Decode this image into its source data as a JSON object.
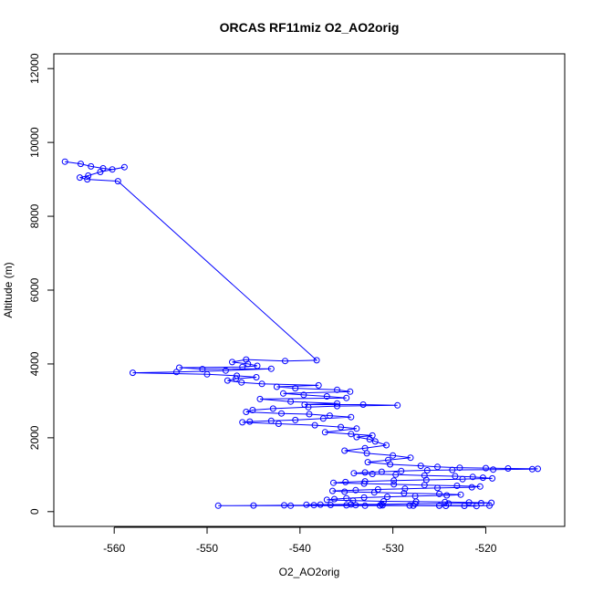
{
  "chart_data": {
    "type": "line",
    "title": "ORCAS RF11miz O2_AO2orig",
    "xlabel": "O2_AO2orig",
    "ylabel": "Altitude (m)",
    "xlim": [
      -566.5,
      -511.5
    ],
    "ylim": [
      -400,
      12400
    ],
    "x_ticks": [
      -560,
      -550,
      -540,
      -530,
      -520
    ],
    "x_tick_labels": [
      "-560",
      "-550",
      "-540",
      "-530",
      "-520"
    ],
    "y_ticks": [
      0,
      2000,
      4000,
      6000,
      8000,
      10000,
      12000
    ],
    "y_tick_labels": [
      "0",
      "2000",
      "4000",
      "6000",
      "8000",
      "10000",
      "12000"
    ],
    "grid": false,
    "series": [
      {
        "name": "O2_AO2orig",
        "color": "#0000ff",
        "marker": "open-circle",
        "x": [
          -565.3,
          -563.6,
          -562.5,
          -561.2,
          -560.2,
          -558.9,
          -561.5,
          -562.8,
          -563.7,
          -562.9,
          -559.6,
          -538.2,
          -541.6,
          -545.8,
          -547.3,
          -545.6,
          -544.6,
          -546.2,
          -553.0,
          -550.5,
          -543.1,
          -548.0,
          -553.3,
          -558.0,
          -550.0,
          -546.8,
          -544.7,
          -546.9,
          -547.8,
          -546.3,
          -544.1,
          -538.0,
          -542.5,
          -540.5,
          -536.0,
          -534.6,
          -541.8,
          -539.6,
          -537.1,
          -535.0,
          -544.3,
          -541.0,
          -536.0,
          -539.5,
          -533.2,
          -529.5,
          -536.0,
          -539.1,
          -542.9,
          -545.1,
          -545.8,
          -542.0,
          -539.0,
          -536.8,
          -534.5,
          -537.5,
          -540.5,
          -543.1,
          -545.4,
          -546.2,
          -542.3,
          -538.4,
          -535.6,
          -533.9,
          -537.3,
          -534.5,
          -532.2,
          -533.9,
          -532.5,
          -531.9,
          -530.7,
          -533.0,
          -535.2,
          -532.8,
          -530.0,
          -528.1,
          -530.5,
          -532.7,
          -530.3,
          -527.0,
          -525.2,
          -522.8,
          -520.0,
          -517.6,
          -514.4,
          -515.0,
          -519.2,
          -523.6,
          -526.3,
          -529.1,
          -531.2,
          -533.0,
          -534.2,
          -532.2,
          -529.7,
          -526.6,
          -523.3,
          -521.4,
          -520.3,
          -519.3,
          -522.5,
          -526.4,
          -529.9,
          -533.0,
          -535.1,
          -536.4,
          -533.1,
          -529.9,
          -526.6,
          -523.1,
          -520.6,
          -521.5,
          -525.2,
          -528.7,
          -531.6,
          -534.0,
          -536.5,
          -535.2,
          -532.0,
          -528.8,
          -525.0,
          -522.7,
          -524.2,
          -527.6,
          -530.6,
          -533.1,
          -535.0,
          -536.3,
          -537.1,
          -534.3,
          -531.0,
          -527.5,
          -524.4,
          -521.8,
          -519.4,
          -520.5,
          -524.0,
          -527.6,
          -531.2,
          -534.5,
          -537.8,
          -539.3,
          -536.7,
          -534.0,
          -531.1,
          -528.2,
          -525.0,
          -522.3,
          -521.0,
          -524.3,
          -527.8,
          -531.4,
          -535.0,
          -538.5,
          -541.7,
          -545.0,
          -548.8,
          -541.0,
          -533.0,
          -525.0,
          -519.6
        ],
        "y": [
          9480,
          9420,
          9350,
          9300,
          9270,
          9330,
          9200,
          9100,
          9050,
          9000,
          8950,
          4100,
          4080,
          4120,
          4050,
          4000,
          3950,
          3920,
          3900,
          3860,
          3870,
          3820,
          3780,
          3760,
          3720,
          3680,
          3640,
          3600,
          3550,
          3500,
          3460,
          3420,
          3380,
          3340,
          3300,
          3250,
          3200,
          3160,
          3120,
          3080,
          3050,
          2980,
          2930,
          2900,
          2900,
          2880,
          2860,
          2830,
          2790,
          2750,
          2700,
          2660,
          2640,
          2600,
          2560,
          2520,
          2480,
          2460,
          2440,
          2420,
          2380,
          2340,
          2290,
          2250,
          2150,
          2100,
          2060,
          2020,
          1960,
          1900,
          1800,
          1720,
          1650,
          1580,
          1520,
          1460,
          1400,
          1340,
          1280,
          1240,
          1210,
          1190,
          1180,
          1170,
          1160,
          1150,
          1140,
          1130,
          1120,
          1100,
          1080,
          1060,
          1040,
          1020,
          1000,
          980,
          960,
          940,
          920,
          900,
          880,
          860,
          840,
          820,
          800,
          780,
          760,
          740,
          720,
          700,
          680,
          660,
          640,
          620,
          600,
          580,
          560,
          540,
          520,
          500,
          480,
          460,
          440,
          420,
          400,
          380,
          360,
          340,
          320,
          300,
          280,
          270,
          260,
          250,
          240,
          230,
          220,
          210,
          200,
          195,
          190,
          185,
          180,
          175,
          170,
          165,
          160,
          155,
          150,
          155,
          160,
          165,
          170,
          175,
          170,
          165,
          160,
          160,
          160,
          160,
          160
        ]
      }
    ]
  }
}
